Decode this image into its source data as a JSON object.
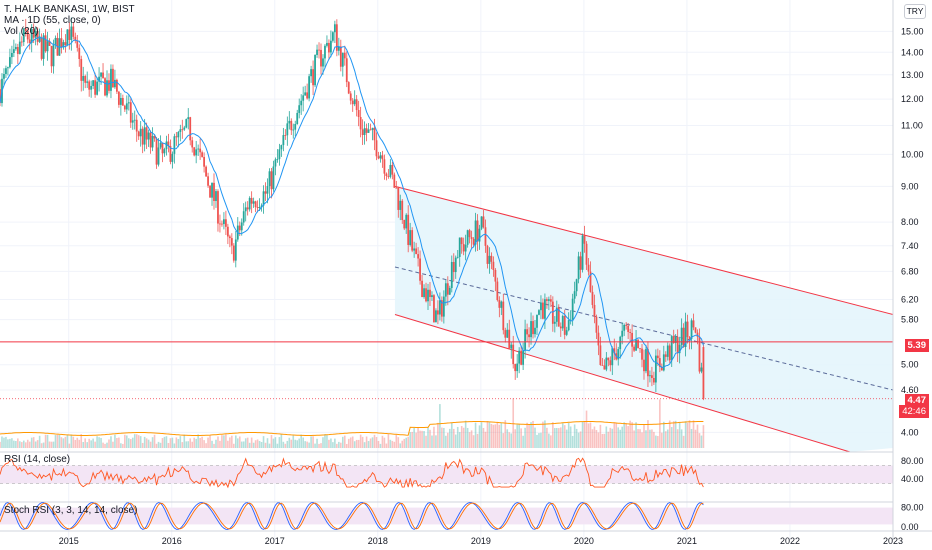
{
  "header": {
    "title": "T. HALK BANKASI, 1W, BIST",
    "indicators": [
      "MA · 1D (55, close, 0)",
      "Vol (20)"
    ]
  },
  "currency": "TRY",
  "colors": {
    "up": "#26a69a",
    "down": "#ef5350",
    "ma": "#2196f3",
    "channel": "#f23645",
    "channel_fill": "#e3f4fb",
    "rsi_line": "#ff5722",
    "rsi_band": "#f3e5f5",
    "stoch_k": "#2962ff",
    "stoch_d": "#ff6d00",
    "vol_ma": "#ff9800"
  },
  "price_tags": {
    "level": "5.39",
    "last": "4.47",
    "countdown": "42:46"
  },
  "panes": {
    "rsi": {
      "label": "RSI (14, close)",
      "ticks": [
        "80.00",
        "40.00"
      ]
    },
    "stoch": {
      "label": "Stoch RSI (3, 3, 14, 14, close)",
      "ticks": [
        "80.00",
        "0.00"
      ]
    }
  },
  "chart_data": {
    "type": "candlestick",
    "scale": "log",
    "x_ticks": [
      "2015",
      "2016",
      "2017",
      "2018",
      "2019",
      "2020",
      "2021",
      "2022",
      "2023"
    ],
    "y_ticks": [
      "15.00",
      "14.00",
      "13.00",
      "12.00",
      "11.00",
      "10.00",
      "9.00",
      "8.00",
      "7.40",
      "6.80",
      "6.20",
      "5.80",
      "5.00",
      "4.60",
      "4.00"
    ],
    "ylim": [
      3.8,
      16.2
    ],
    "xlim": [
      "2014-05",
      "2023-01"
    ],
    "price_path": [
      [
        "2014-05",
        12.4
      ],
      [
        "2014-08",
        14.8
      ],
      [
        "2014-11",
        13.9
      ],
      [
        "2015-01",
        15.2
      ],
      [
        "2015-03",
        12.4
      ],
      [
        "2015-06",
        12.7
      ],
      [
        "2015-09",
        10.8
      ],
      [
        "2015-12",
        9.9
      ],
      [
        "2016-03",
        10.9
      ],
      [
        "2016-06",
        8.6
      ],
      [
        "2016-08",
        7.2
      ],
      [
        "2016-10",
        8.6
      ],
      [
        "2016-12",
        8.8
      ],
      [
        "2017-03",
        11.2
      ],
      [
        "2017-06",
        13.6
      ],
      [
        "2017-08",
        14.9
      ],
      [
        "2017-11",
        11.0
      ],
      [
        "2018-01",
        10.3
      ],
      [
        "2018-03",
        9.0
      ],
      [
        "2018-06",
        6.6
      ],
      [
        "2018-08",
        5.8
      ],
      [
        "2018-10",
        7.2
      ],
      [
        "2019-01",
        7.9
      ],
      [
        "2019-03",
        6.3
      ],
      [
        "2019-05",
        5.0
      ],
      [
        "2019-08",
        6.1
      ],
      [
        "2019-11",
        5.6
      ],
      [
        "2020-01",
        7.5
      ],
      [
        "2020-03",
        4.8
      ],
      [
        "2020-06",
        5.6
      ],
      [
        "2020-09",
        4.9
      ],
      [
        "2020-12",
        5.4
      ],
      [
        "2021-02",
        5.7
      ],
      [
        "2021-03",
        4.47
      ]
    ],
    "ma_55": "smoothed moving average of price_path",
    "horizontal_level": 5.39,
    "last_price": 4.47,
    "channel": {
      "upper": [
        [
          "2018-03",
          9.0
        ],
        [
          "2023-01",
          5.9
        ]
      ],
      "lower": [
        [
          "2018-03",
          5.9
        ],
        [
          "2022-08",
          3.75
        ]
      ],
      "mid": [
        [
          "2018-03",
          6.9
        ],
        [
          "2023-01",
          4.6
        ]
      ]
    },
    "rsi": {
      "ylim": [
        0,
        100
      ],
      "ticks": [
        80,
        40
      ]
    },
    "stoch_rsi": {
      "ylim": [
        0,
        100
      ],
      "ticks": [
        80,
        0
      ]
    }
  }
}
